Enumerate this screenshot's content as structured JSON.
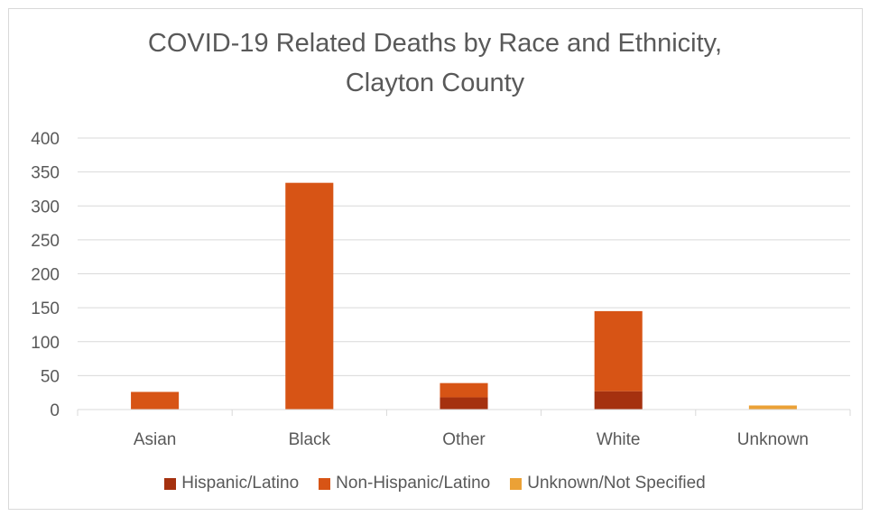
{
  "chart_data": {
    "type": "bar",
    "stacked": true,
    "title": [
      "COVID-19 Related Deaths by Race and Ethnicity,",
      "Clayton County"
    ],
    "categories": [
      "Asian",
      "Black",
      "Other",
      "White",
      "Unknown"
    ],
    "series": [
      {
        "name": "Hispanic/Latino",
        "color": "#a5310f",
        "values": [
          0,
          0,
          18,
          27,
          0
        ]
      },
      {
        "name": "Non-Hispanic/Latino",
        "color": "#d75415",
        "values": [
          26,
          334,
          21,
          118,
          0
        ]
      },
      {
        "name": "Unknown/Not Specified",
        "color": "#eba136",
        "values": [
          0,
          0,
          0,
          0,
          6
        ]
      }
    ],
    "ylim": [
      0,
      400
    ],
    "yticks": [
      0,
      50,
      100,
      150,
      200,
      250,
      300,
      350,
      400
    ],
    "xlabel": "",
    "ylabel": "",
    "grid": true,
    "legend_position": "bottom"
  }
}
